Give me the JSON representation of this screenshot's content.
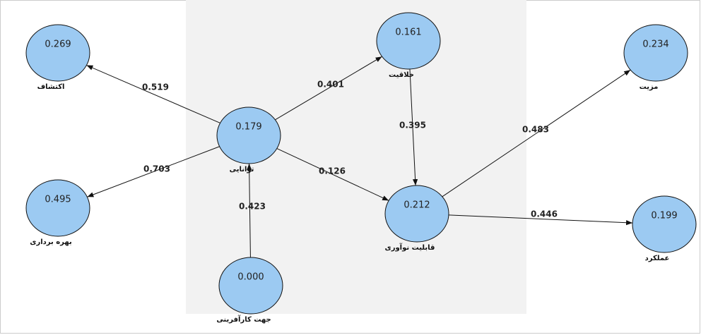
{
  "nodes": [
    {
      "label": "اکتشاف",
      "value": "0.269"
    },
    {
      "label": "خلاقیت",
      "value": "0.161"
    },
    {
      "label": "مزیت",
      "value": "0.234"
    },
    {
      "label": "توانایی",
      "value": "0.179"
    },
    {
      "label": "بهره برداری",
      "value": "0.495"
    },
    {
      "label": "قابلیت نوآوری",
      "value": "0.212"
    },
    {
      "label": "عملکرد",
      "value": "0.199"
    },
    {
      "label": "جهت کارآفرینی",
      "value": "0.000"
    }
  ],
  "edges": [
    {
      "from": 3,
      "to": 0,
      "value": "0.519"
    },
    {
      "from": 3,
      "to": 1,
      "value": "0.401"
    },
    {
      "from": 3,
      "to": 4,
      "value": "0.703"
    },
    {
      "from": 3,
      "to": 5,
      "value": "0.126"
    },
    {
      "from": 1,
      "to": 5,
      "value": "0.395"
    },
    {
      "from": 5,
      "to": 2,
      "value": "0.483"
    },
    {
      "from": 5,
      "to": 6,
      "value": "0.446"
    },
    {
      "from": 7,
      "to": 3,
      "value": "0.423"
    }
  ]
}
